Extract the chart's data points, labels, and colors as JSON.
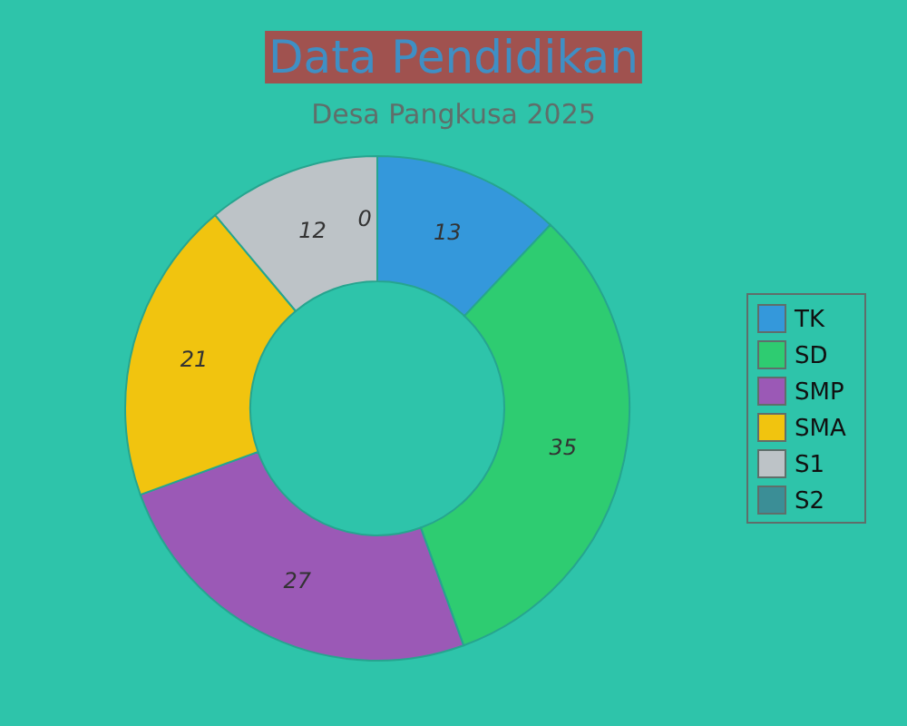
{
  "chart_data": {
    "type": "donut",
    "title": "Data Pendidikan",
    "subtitle": "Desa Pangkusa 2025",
    "categories": [
      "TK",
      "SD",
      "SMP",
      "SMA",
      "S1",
      "S2"
    ],
    "values": [
      13,
      35,
      27,
      21,
      12,
      0
    ],
    "colors": [
      "#3498db",
      "#2ecc71",
      "#9b59b6",
      "#f1c40f",
      "#bdc3c7",
      "#3b8e96"
    ],
    "value_labels": [
      "13",
      "35",
      "27",
      "21",
      "12",
      "0"
    ],
    "legend": "right"
  }
}
